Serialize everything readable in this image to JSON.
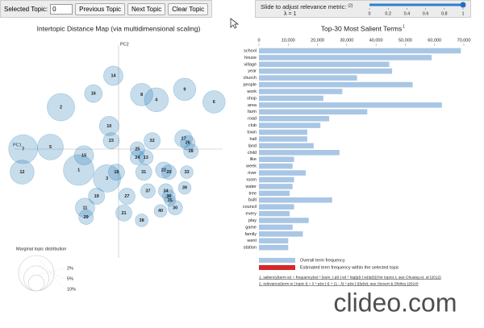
{
  "controls": {
    "selected_topic_label": "Selected Topic:",
    "selected_topic": 0,
    "buttons": [
      "Previous Topic",
      "Next Topic",
      "Clear Topic"
    ]
  },
  "slider": {
    "label": "Slide to adjust relevance metric:",
    "note": "(2)",
    "lambda_label": "λ = 1",
    "value": 1,
    "lim": [
      0,
      1
    ],
    "ticks": [
      0,
      0.2,
      0.4,
      0.6,
      0.8,
      1
    ]
  },
  "chart_data": [
    {
      "type": "scatter",
      "title": "Intertopic Distance Map (via multidimensional scaling)",
      "xlabel": "PC1",
      "ylabel": "PC2",
      "xlim": [
        -1.1,
        1.1
      ],
      "ylim": [
        -1.1,
        1.1
      ],
      "color": "#1f77b4",
      "labels": [
        1,
        2,
        3,
        4,
        5,
        6,
        7,
        8,
        9,
        10,
        11,
        12,
        13,
        14,
        15,
        16,
        17,
        18,
        19,
        20,
        21,
        22,
        23,
        24,
        25,
        26,
        27,
        28,
        29,
        30,
        31,
        32,
        33,
        34,
        35,
        36,
        37,
        38,
        39,
        40
      ],
      "x": [
        -0.38,
        -0.55,
        -0.11,
        0.36,
        -0.65,
        0.91,
        -0.91,
        0.22,
        0.63,
        -0.09,
        -0.32,
        -0.92,
        0.26,
        -0.05,
        -0.33,
        -0.24,
        0.62,
        -0.02,
        -0.21,
        0.48,
        0.05,
        0.43,
        -0.07,
        0.18,
        0.18,
        0.66,
        0.08,
        0.69,
        -0.31,
        0.54,
        0.24,
        0.32,
        0.65,
        0.45,
        0.49,
        0.48,
        0.28,
        0.22,
        0.63,
        0.4
      ],
      "y": [
        -0.2,
        0.4,
        -0.28,
        0.47,
        0.02,
        0.45,
        0.0,
        0.52,
        0.57,
        0.22,
        -0.56,
        -0.22,
        -0.08,
        0.7,
        -0.06,
        0.53,
        0.1,
        -0.22,
        -0.45,
        -0.22,
        -0.61,
        -0.2,
        0.08,
        -0.08,
        0.0,
        0.06,
        -0.45,
        -0.02,
        -0.65,
        -0.56,
        -0.22,
        0.08,
        -0.22,
        -0.4,
        -0.49,
        -0.45,
        -0.4,
        -0.68,
        -0.37,
        -0.59
      ],
      "sizes": [
        7.5,
        6.0,
        6.0,
        4.6,
        5.3,
        4.0,
        6.7,
        4.0,
        4.0,
        3.0,
        3.0,
        4.6,
        1.7,
        3.0,
        3.0,
        2.5,
        2.5,
        2.1,
        2.1,
        1.7,
        2.1,
        2.1,
        2.1,
        1.7,
        1.7,
        1.7,
        2.1,
        1.7,
        1.7,
        1.7,
        2.1,
        2.1,
        1.3,
        1.7,
        1.0,
        1.3,
        1.7,
        1.3,
        1.3,
        1.3
      ],
      "size_legend": {
        "title": "Marginal topic distribution",
        "values": [
          {
            "value": 2,
            "label": "2%"
          },
          {
            "value": 5,
            "label": "5%"
          },
          {
            "value": 10,
            "label": "10%"
          }
        ]
      }
    },
    {
      "type": "hbar",
      "title": "Top-30 Most Salient Terms",
      "title_note": "1",
      "color": "#a9c6e4",
      "categories": [
        "school",
        "house",
        "village",
        "year",
        "church",
        "people",
        "work",
        "shop",
        "area",
        "farm",
        "road",
        "club",
        "town",
        "hall",
        "land",
        "child",
        "like",
        "week",
        "river",
        "room",
        "water",
        "tree",
        "built",
        "council",
        "every",
        "play",
        "game",
        "family",
        "went",
        "station"
      ],
      "values": [
        69000,
        59000,
        44500,
        45500,
        33500,
        52500,
        28500,
        22000,
        62500,
        37000,
        24000,
        21000,
        16500,
        16500,
        18700,
        27500,
        12000,
        11500,
        16000,
        12000,
        11500,
        10500,
        25000,
        12000,
        10500,
        17000,
        11500,
        15000,
        10000,
        10000
      ],
      "xlim": [
        0,
        70000
      ],
      "xticks": [
        0,
        {
          "value": 10000,
          "label": "10,000"
        },
        {
          "value": 20000,
          "label": "20,000"
        },
        {
          "value": 30000,
          "label": "30,000"
        },
        {
          "value": 40000,
          "label": "40,000"
        },
        {
          "value": 50000,
          "label": "50,000"
        },
        {
          "value": 60000,
          "label": "60,000"
        },
        {
          "value": 70000,
          "label": "70,000"
        }
      ],
      "legend": [
        {
          "name": "Overall term frequency",
          "color": "#a9c6e4"
        },
        {
          "name": "Estimated term frequency within the selected topic",
          "color": "#d62728"
        }
      ]
    }
  ],
  "footnotes": [
    "1. saliency(term w) = frequency(w) * [sum_t p(t | w) * log(p(t | w)/p(t))] for topics t; see Chuang et. al (2012)",
    "2. relevance(term w | topic t) = λ * p(w | t) + (1 - λ) * p(w | t)/p(w); see Sievert & Shirley (2014)"
  ],
  "watermark": "clideo.com"
}
